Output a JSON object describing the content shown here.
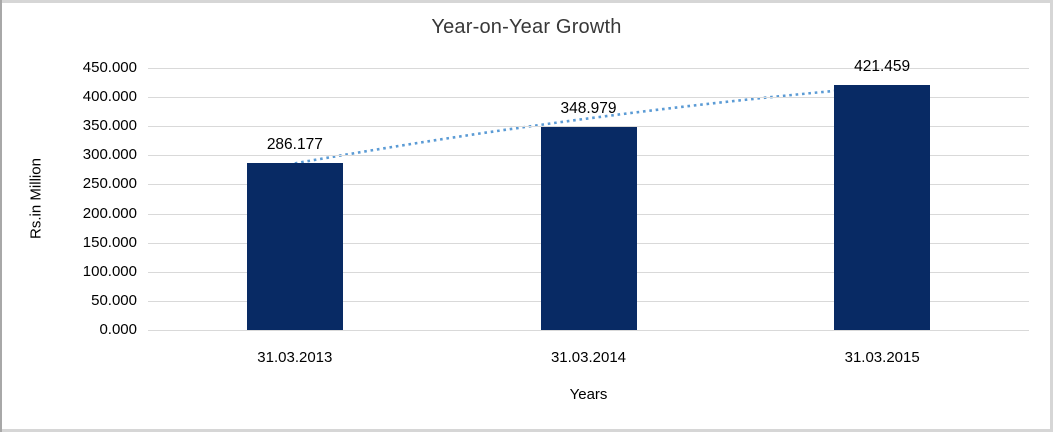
{
  "frame": {
    "background": "#ffffff",
    "border_color": "#d6d6d6",
    "left_edge_color": "#a8a8a8"
  },
  "chart_data": {
    "type": "bar",
    "title": "Year-on-Year Growth",
    "xlabel": "Years",
    "ylabel": "Rs.in Million",
    "categories": [
      "31.03.2013",
      "31.03.2014",
      "31.03.2015"
    ],
    "values": [
      286.177,
      348.979,
      421.459
    ],
    "data_labels": [
      "286.177",
      "348.979",
      "421.459"
    ],
    "ylim": [
      0,
      450
    ],
    "ytick_step": 50,
    "ytick_labels": [
      "0.000",
      "50.000",
      "100.000",
      "150.000",
      "200.000",
      "250.000",
      "300.000",
      "350.000",
      "400.000",
      "450.000"
    ],
    "grid": true,
    "legend": "none",
    "colors": {
      "bar": "#082a64",
      "trendline": "#5b9bd5",
      "gridline": "#d9d9d9",
      "title_text": "#383838",
      "axis_text": "#000000"
    },
    "trendline": {
      "style": "dotted",
      "shape": "slightly-concave-rising",
      "color": "#5b9bd5"
    }
  }
}
